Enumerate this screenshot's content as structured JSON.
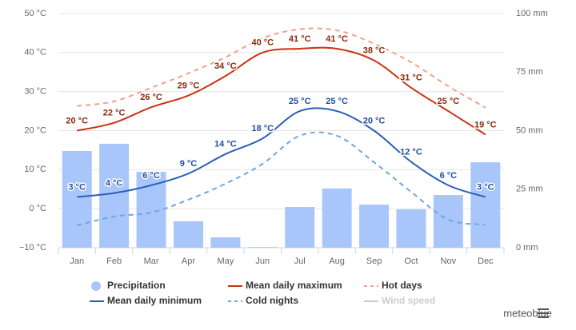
{
  "chart_data": {
    "type": "combo",
    "categories": [
      "Jan",
      "Feb",
      "Mar",
      "Apr",
      "May",
      "Jun",
      "Jul",
      "Aug",
      "Sep",
      "Oct",
      "Nov",
      "Dec"
    ],
    "series": [
      {
        "name": "Precipitation",
        "type": "bar",
        "axis": "y2",
        "color": "#a9c6fa",
        "values": [
          41.3,
          44.4,
          32.4,
          11.3,
          4.4,
          0.3,
          17.4,
          25.3,
          18.4,
          16.4,
          22.5,
          36.5
        ]
      },
      {
        "name": "Mean daily maximum",
        "type": "line",
        "color": "#cc3311",
        "label_color": "#8b2a0a",
        "values": [
          20,
          22,
          26,
          29,
          34,
          40,
          41,
          41,
          38,
          31,
          25,
          19
        ],
        "value_labels": [
          "20 °C",
          "22 °C",
          "26 °C",
          "29 °C",
          "34 °C",
          "40 °C",
          "41 °C",
          "41 °C",
          "38 °C",
          "31 °C",
          "25 °C",
          "19 °C"
        ]
      },
      {
        "name": "Hot days",
        "type": "line",
        "dashed": true,
        "color": "#f4a08a",
        "values": [
          26.3,
          27.5,
          31,
          34.7,
          38.8,
          43.7,
          46,
          45.7,
          42.3,
          37.5,
          31.4,
          25.9
        ]
      },
      {
        "name": "Mean daily minimum",
        "type": "line",
        "color": "#2c5fb5",
        "label_color": "#1f4ea0",
        "values": [
          3,
          4,
          6,
          9,
          14,
          18,
          25,
          25,
          20,
          12,
          6,
          3
        ],
        "value_labels": [
          "3 °C",
          "4 °C",
          "6 °C",
          "9 °C",
          "14 °C",
          "18 °C",
          "25 °C",
          "25 °C",
          "20 °C",
          "12 °C",
          "6 °C",
          "3 °C"
        ]
      },
      {
        "name": "Cold nights",
        "type": "line",
        "dashed": true,
        "color": "#6ea6e0",
        "values": [
          -4.3,
          -2,
          -1,
          2.3,
          6.4,
          11.5,
          18.7,
          18.7,
          11.9,
          4.3,
          -2.8,
          -4.1
        ]
      }
    ],
    "legend_inactive": [
      "Wind speed"
    ],
    "ylim": [
      -10,
      50
    ],
    "yticks": [
      {
        "value": -10,
        "label": "−10 °C"
      },
      {
        "value": 0,
        "label": "0 °C"
      },
      {
        "value": 10,
        "label": "10 °C"
      },
      {
        "value": 20,
        "label": "20 °C"
      },
      {
        "value": 30,
        "label": "30 °C"
      },
      {
        "value": 40,
        "label": "40 °C"
      },
      {
        "value": 50,
        "label": "50 °C"
      }
    ],
    "y2lim": [
      0,
      100
    ],
    "y2ticks": [
      {
        "value": 0,
        "label": "0 mm"
      },
      {
        "value": 25,
        "label": "25 mm"
      },
      {
        "value": 50,
        "label": "50 mm"
      },
      {
        "value": 75,
        "label": "75 mm"
      },
      {
        "value": 100,
        "label": "100 mm"
      }
    ],
    "grid": true,
    "brand": "meteoblue"
  }
}
